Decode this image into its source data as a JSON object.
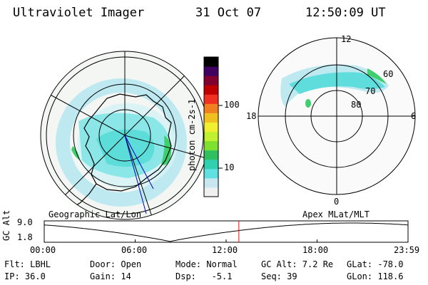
{
  "header": {
    "instrument": "Ultraviolet Imager",
    "date": "31 Oct 07",
    "time": "12:50:09 UT"
  },
  "colorbar": {
    "unit_label": "photon cm-2s-1",
    "ticks": [
      "100",
      "10"
    ],
    "colors": [
      "#f0f0f0",
      "#c8e6f0",
      "#60e0e0",
      "#30d0b0",
      "#30c060",
      "#80e030",
      "#c0f030",
      "#f0f030",
      "#f0c020",
      "#f08020",
      "#f03020",
      "#c00000",
      "#800030",
      "#400060",
      "#000000"
    ]
  },
  "geographic_map": {
    "label": "Geographic Lat/Lon"
  },
  "magnetic_map": {
    "label": "Apex MLat/MLT",
    "mlt_labels": {
      "top": "12",
      "left": "18",
      "right": "6",
      "bottom": "0"
    },
    "lat_labels": [
      "60",
      "70",
      "80"
    ]
  },
  "altitude_plot": {
    "ylabel": "GC Alt",
    "yticks": [
      "9.0",
      "1.8"
    ],
    "xticks": [
      "00:00",
      "06:00",
      "12:00",
      "18:00",
      "23:59"
    ],
    "marker_color": "#ff0000",
    "marker_time_hours": 12.84
  },
  "status": {
    "filter": "Flt: LBHL",
    "ip": "IP: 36.0",
    "door": "Door: Open",
    "gain": "Gain: 14",
    "mode": "Mode: Normal",
    "dsp": "Dsp:   -5.1",
    "gc_alt": "GC Alt: 7.2 Re",
    "seq": "Seq: 39",
    "glat": "GLat: -78.0",
    "glon": "GLon: 118.6"
  }
}
